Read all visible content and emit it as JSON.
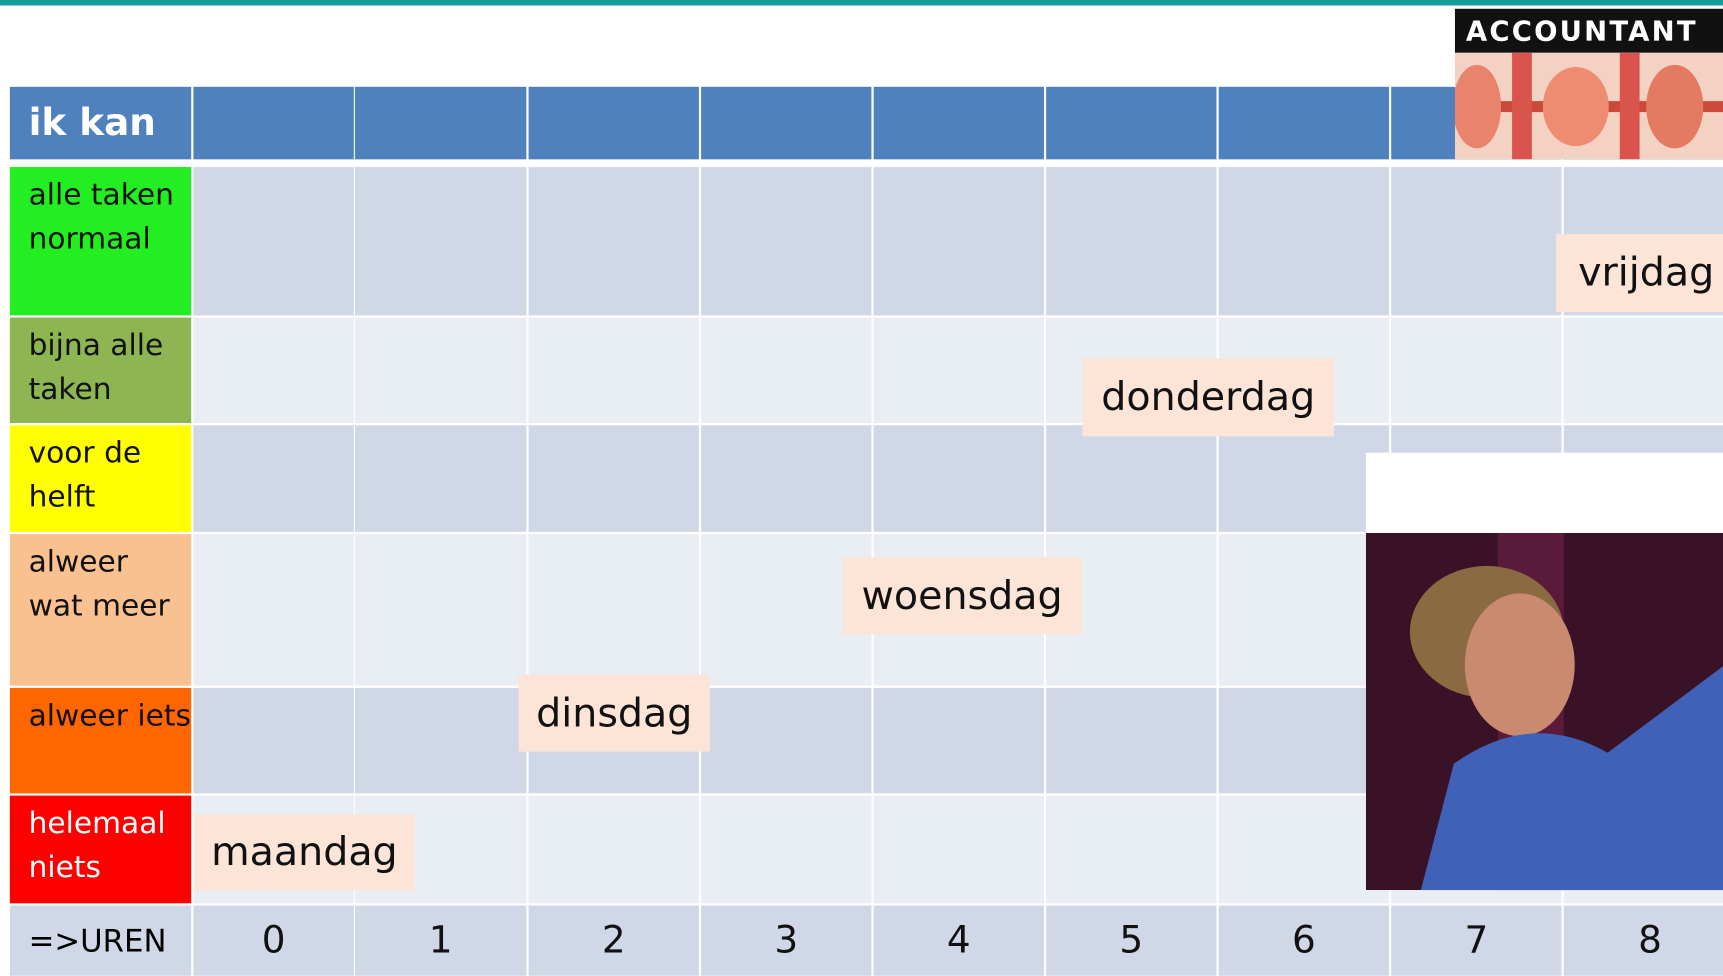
{
  "header": {
    "title": "ik kan"
  },
  "rows": [
    {
      "label": "alle taken normaal"
    },
    {
      "label": "bijna alle taken"
    },
    {
      "label": "voor de helft"
    },
    {
      "label": "alweer wat meer"
    },
    {
      "label": "alweer iets"
    },
    {
      "label": "helemaal niets"
    }
  ],
  "footer": {
    "label": "=>UREN",
    "hours": [
      0,
      1,
      2,
      3,
      4,
      5,
      6,
      7,
      8
    ]
  },
  "days": [
    "maandag",
    "dinsdag",
    "woensdag",
    "donderdag",
    "vrijdag"
  ],
  "logo": {
    "text": "ACCOUNTANT"
  }
}
